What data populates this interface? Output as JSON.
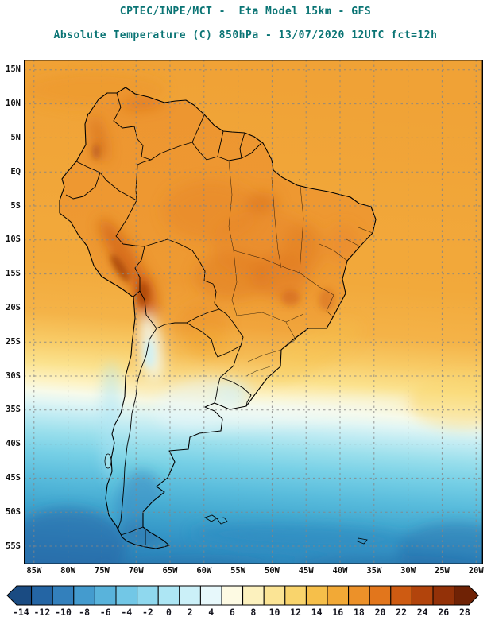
{
  "header": {
    "title_line1": "CPTEC/INPE/MCT -  Eta Model 15km - GFS",
    "title_line2": "Absolute Temperature (C) 850hPa - 13/07/2020 12UTC fct=12h",
    "title_color": "#0a7474"
  },
  "map": {
    "lat_labels": [
      "15N",
      "10N",
      "5N",
      "EQ",
      "5S",
      "10S",
      "15S",
      "20S",
      "25S",
      "30S",
      "35S",
      "40S",
      "45S",
      "50S",
      "55S"
    ],
    "lon_labels": [
      "85W",
      "80W",
      "75W",
      "70W",
      "65W",
      "60W",
      "55W",
      "50W",
      "45W",
      "40W",
      "35W",
      "30W",
      "25W",
      "20W"
    ]
  },
  "colorbar": {
    "unit": "C",
    "values": [
      "-14",
      "-12",
      "-10",
      "-8",
      "-6",
      "-4",
      "-2",
      "0",
      "2",
      "4",
      "6",
      "8",
      "10",
      "12",
      "14",
      "16",
      "18",
      "20",
      "22",
      "24",
      "26",
      "28"
    ],
    "colors": [
      "#1A4B82",
      "#2465A4",
      "#3380BC",
      "#449BCE",
      "#59B3DB",
      "#72C7E6",
      "#8FD8EE",
      "#ADE6F4",
      "#CBF0F8",
      "#E7F8FB",
      "#FDFAE3",
      "#FCF1BE",
      "#FBE495",
      "#F9D46C",
      "#F6BF4A",
      "#F2A936",
      "#EC9129",
      "#E2761C",
      "#CE5B12",
      "#B2440C",
      "#933108",
      "#6F2205"
    ]
  }
}
